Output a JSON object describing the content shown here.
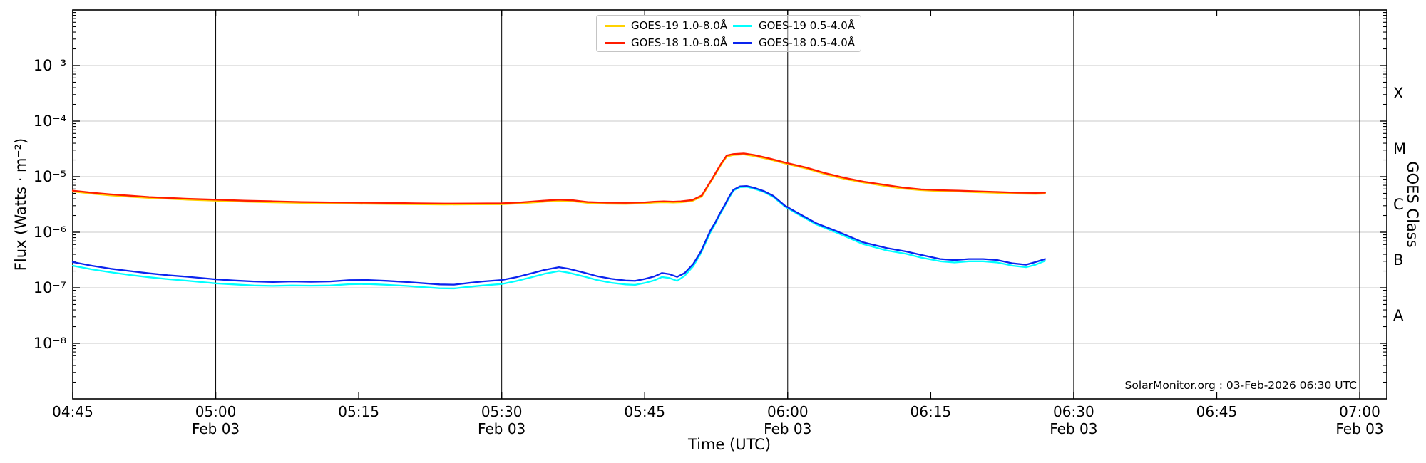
{
  "figure": {
    "xlabel": "Time (UTC)",
    "ylabel_left": "Flux (Watts · m⁻²)",
    "ylabel_right": "GOES Class",
    "attribution": "SolarMonitor.org : 03-Feb-2026 06:30 UTC"
  },
  "chart_data": {
    "type": "line",
    "title": "",
    "xlabel": "Time (UTC)",
    "ylabel": "Flux (Watts · m⁻²)",
    "ylabel_right": "GOES Class",
    "attribution": "SolarMonitor.org : 03-Feb-2026 06:30 UTC",
    "y_scale": "log",
    "ylim": [
      1e-09,
      0.01
    ],
    "x_axis": {
      "start_label": "04:45",
      "end_label": "07:00",
      "minutes_after_start_domain": [
        0,
        137.8
      ],
      "ticks": [
        {
          "min": 0,
          "label": "04:45"
        },
        {
          "min": 15,
          "label": "05:00",
          "date": "Feb 03"
        },
        {
          "min": 30,
          "label": "05:15"
        },
        {
          "min": 45,
          "label": "05:30",
          "date": "Feb 03"
        },
        {
          "min": 60,
          "label": "05:45"
        },
        {
          "min": 75,
          "label": "06:00",
          "date": "Feb 03"
        },
        {
          "min": 90,
          "label": "06:15"
        },
        {
          "min": 105,
          "label": "06:30",
          "date": "Feb 03"
        },
        {
          "min": 120,
          "label": "06:45"
        },
        {
          "min": 135,
          "label": "07:00",
          "date": "Feb 03"
        }
      ],
      "vertical_gridline_minutes": [
        15,
        45,
        75,
        105,
        135
      ]
    },
    "y_axis": {
      "tick_exponents": [
        -3,
        -4,
        -5,
        -6,
        -7,
        -8
      ],
      "tick_labels": [
        "10⁻³",
        "10⁻⁴",
        "10⁻⁵",
        "10⁻⁶",
        "10⁻⁷",
        "10⁻⁸"
      ],
      "gridline_exponents": [
        -3,
        -4,
        -5,
        -6,
        -7,
        -8
      ],
      "grid_color": "#c9c9c9"
    },
    "goes_classes": [
      {
        "label": "X",
        "center_exponent": -3.5
      },
      {
        "label": "M",
        "center_exponent": -4.5
      },
      {
        "label": "C",
        "center_exponent": -5.5
      },
      {
        "label": "B",
        "center_exponent": -6.5
      },
      {
        "label": "A",
        "center_exponent": -7.5
      }
    ],
    "legend_position": "top-center",
    "series": [
      {
        "name": "GOES-19 1.0-8.0Å",
        "color": "#ffd200",
        "points_min_flux": [
          [
            0,
            5.4e-06
          ],
          [
            2,
            4.95e-06
          ],
          [
            4,
            4.6e-06
          ],
          [
            6,
            4.35e-06
          ],
          [
            8,
            4.15e-06
          ],
          [
            10,
            4e-06
          ],
          [
            12,
            3.85e-06
          ],
          [
            15,
            3.7e-06
          ],
          [
            18,
            3.55e-06
          ],
          [
            21,
            3.45e-06
          ],
          [
            24,
            3.36e-06
          ],
          [
            27,
            3.31e-06
          ],
          [
            30,
            3.26e-06
          ],
          [
            33,
            3.23e-06
          ],
          [
            36,
            3.19e-06
          ],
          [
            39,
            3.15e-06
          ],
          [
            42,
            3.17e-06
          ],
          [
            45,
            3.19e-06
          ],
          [
            47,
            3.31e-06
          ],
          [
            49,
            3.5e-06
          ],
          [
            51,
            3.7e-06
          ],
          [
            52.5,
            3.6e-06
          ],
          [
            54,
            3.36e-06
          ],
          [
            56,
            3.26e-06
          ],
          [
            58,
            3.24e-06
          ],
          [
            60,
            3.31e-06
          ],
          [
            61,
            3.41e-06
          ],
          [
            62,
            3.46e-06
          ],
          [
            63,
            3.41e-06
          ],
          [
            63.8,
            3.46e-06
          ],
          [
            65,
            3.65e-06
          ],
          [
            66,
            4.4e-06
          ],
          [
            66.8,
            7.4e-06
          ],
          [
            67.2,
            9.6e-06
          ],
          [
            68,
            1.63e-05
          ],
          [
            68.6,
            2.3e-05
          ],
          [
            69.3,
            2.45e-05
          ],
          [
            70.4,
            2.52e-05
          ],
          [
            71.5,
            2.35e-05
          ],
          [
            73,
            2.06e-05
          ],
          [
            74.7,
            1.73e-05
          ],
          [
            77,
            1.39e-05
          ],
          [
            79,
            1.1e-05
          ],
          [
            81,
            9.1e-06
          ],
          [
            83,
            7.8e-06
          ],
          [
            85,
            6.9e-06
          ],
          [
            87,
            6.1e-06
          ],
          [
            89,
            5.7e-06
          ],
          [
            91,
            5.5e-06
          ],
          [
            93,
            5.4e-06
          ],
          [
            95,
            5.23e-06
          ],
          [
            97,
            5.1e-06
          ],
          [
            99,
            4.94e-06
          ],
          [
            101,
            4.9e-06
          ],
          [
            102,
            4.94e-06
          ]
        ]
      },
      {
        "name": "GOES-18 1.0-8.0Å",
        "color": "#ff1c00",
        "points_min_flux": [
          [
            0,
            5.6e-06
          ],
          [
            2,
            5.15e-06
          ],
          [
            4,
            4.8e-06
          ],
          [
            6,
            4.55e-06
          ],
          [
            8,
            4.3e-06
          ],
          [
            10,
            4.15e-06
          ],
          [
            12,
            4e-06
          ],
          [
            15,
            3.85e-06
          ],
          [
            18,
            3.7e-06
          ],
          [
            21,
            3.6e-06
          ],
          [
            24,
            3.5e-06
          ],
          [
            27,
            3.45e-06
          ],
          [
            30,
            3.4e-06
          ],
          [
            33,
            3.37e-06
          ],
          [
            36,
            3.32e-06
          ],
          [
            39,
            3.28e-06
          ],
          [
            42,
            3.3e-06
          ],
          [
            45,
            3.32e-06
          ],
          [
            47,
            3.45e-06
          ],
          [
            49,
            3.65e-06
          ],
          [
            51,
            3.85e-06
          ],
          [
            52.5,
            3.75e-06
          ],
          [
            54,
            3.5e-06
          ],
          [
            56,
            3.4e-06
          ],
          [
            58,
            3.38e-06
          ],
          [
            60,
            3.45e-06
          ],
          [
            61,
            3.55e-06
          ],
          [
            62,
            3.6e-06
          ],
          [
            63,
            3.55e-06
          ],
          [
            63.8,
            3.6e-06
          ],
          [
            65,
            3.8e-06
          ],
          [
            66,
            4.6e-06
          ],
          [
            66.8,
            7.7e-06
          ],
          [
            67.2,
            1e-05
          ],
          [
            68,
            1.7e-05
          ],
          [
            68.6,
            2.4e-05
          ],
          [
            69.3,
            2.55e-05
          ],
          [
            70.4,
            2.62e-05
          ],
          [
            71.5,
            2.45e-05
          ],
          [
            73,
            2.15e-05
          ],
          [
            74.7,
            1.8e-05
          ],
          [
            77,
            1.45e-05
          ],
          [
            79,
            1.15e-05
          ],
          [
            81,
            9.5e-06
          ],
          [
            83,
            8.1e-06
          ],
          [
            85,
            7.2e-06
          ],
          [
            87,
            6.4e-06
          ],
          [
            89,
            5.9e-06
          ],
          [
            91,
            5.7e-06
          ],
          [
            93,
            5.6e-06
          ],
          [
            95,
            5.45e-06
          ],
          [
            97,
            5.3e-06
          ],
          [
            99,
            5.15e-06
          ],
          [
            101,
            5.1e-06
          ],
          [
            102,
            5.15e-06
          ]
        ]
      },
      {
        "name": "GOES-19 0.5-4.0Å",
        "color": "#00ffff",
        "points_min_flux": [
          [
            0,
            2.5e-07
          ],
          [
            2,
            2.15e-07
          ],
          [
            4,
            1.9e-07
          ],
          [
            6,
            1.7e-07
          ],
          [
            8,
            1.55e-07
          ],
          [
            10,
            1.43e-07
          ],
          [
            12,
            1.34e-07
          ],
          [
            15,
            1.2e-07
          ],
          [
            17,
            1.15e-07
          ],
          [
            19,
            1.1e-07
          ],
          [
            21,
            1.08e-07
          ],
          [
            23,
            1.1e-07
          ],
          [
            25,
            1.09e-07
          ],
          [
            27,
            1.1e-07
          ],
          [
            29,
            1.16e-07
          ],
          [
            31,
            1.17e-07
          ],
          [
            33,
            1.13e-07
          ],
          [
            35,
            1.08e-07
          ],
          [
            37,
            1.02e-07
          ],
          [
            38.5,
            9.8e-08
          ],
          [
            40,
            9.7e-08
          ],
          [
            41.5,
            1.04e-07
          ],
          [
            43,
            1.1e-07
          ],
          [
            45,
            1.17e-07
          ],
          [
            46.5,
            1.32e-07
          ],
          [
            48,
            1.53e-07
          ],
          [
            49.5,
            1.79e-07
          ],
          [
            51,
            2e-07
          ],
          [
            52,
            1.87e-07
          ],
          [
            53.5,
            1.62e-07
          ],
          [
            55,
            1.38e-07
          ],
          [
            56.5,
            1.23e-07
          ],
          [
            58,
            1.15e-07
          ],
          [
            59,
            1.13e-07
          ],
          [
            60,
            1.22e-07
          ],
          [
            61,
            1.36e-07
          ],
          [
            61.8,
            1.56e-07
          ],
          [
            62.6,
            1.5e-07
          ],
          [
            63.4,
            1.33e-07
          ],
          [
            64.2,
            1.65e-07
          ],
          [
            65.1,
            2.45e-07
          ],
          [
            65.9,
            4.2e-07
          ],
          [
            66.4,
            6.5e-07
          ],
          [
            66.9,
            1e-06
          ],
          [
            67.4,
            1.42e-06
          ],
          [
            67.9,
            2.1e-06
          ],
          [
            68.4,
            2.95e-06
          ],
          [
            68.9,
            4.3e-06
          ],
          [
            69.3,
            5.6e-06
          ],
          [
            70,
            6.45e-06
          ],
          [
            70.7,
            6.55e-06
          ],
          [
            71.5,
            6.05e-06
          ],
          [
            72.5,
            5.3e-06
          ],
          [
            73.5,
            4.3e-06
          ],
          [
            74.7,
            2.9e-06
          ],
          [
            76,
            2.15e-06
          ],
          [
            78,
            1.38e-06
          ],
          [
            80.4,
            9.4e-07
          ],
          [
            82.9,
            6.1e-07
          ],
          [
            85.4,
            4.7e-07
          ],
          [
            87.4,
            4.1e-07
          ],
          [
            89,
            3.5e-07
          ],
          [
            91,
            3e-07
          ],
          [
            92.5,
            2.85e-07
          ],
          [
            94,
            3e-07
          ],
          [
            95.5,
            3e-07
          ],
          [
            97,
            2.85e-07
          ],
          [
            98.6,
            2.5e-07
          ],
          [
            100,
            2.35e-07
          ],
          [
            101,
            2.6e-07
          ],
          [
            102,
            3.05e-07
          ]
        ]
      },
      {
        "name": "GOES-18 0.5-4.0Å",
        "color": "#0a24ee",
        "points_min_flux": [
          [
            0,
            2.9e-07
          ],
          [
            2,
            2.5e-07
          ],
          [
            4,
            2.2e-07
          ],
          [
            6,
            2e-07
          ],
          [
            8,
            1.82e-07
          ],
          [
            10,
            1.68e-07
          ],
          [
            12,
            1.58e-07
          ],
          [
            15,
            1.42e-07
          ],
          [
            17,
            1.35e-07
          ],
          [
            19,
            1.3e-07
          ],
          [
            21,
            1.27e-07
          ],
          [
            23,
            1.3e-07
          ],
          [
            25,
            1.28e-07
          ],
          [
            27,
            1.3e-07
          ],
          [
            29,
            1.37e-07
          ],
          [
            31,
            1.38e-07
          ],
          [
            33,
            1.33e-07
          ],
          [
            35,
            1.27e-07
          ],
          [
            37,
            1.2e-07
          ],
          [
            38.5,
            1.15e-07
          ],
          [
            40,
            1.14e-07
          ],
          [
            41.5,
            1.22e-07
          ],
          [
            43,
            1.3e-07
          ],
          [
            45,
            1.38e-07
          ],
          [
            46.5,
            1.55e-07
          ],
          [
            48,
            1.8e-07
          ],
          [
            49.5,
            2.1e-07
          ],
          [
            51,
            2.35e-07
          ],
          [
            52,
            2.2e-07
          ],
          [
            53.5,
            1.9e-07
          ],
          [
            55,
            1.62e-07
          ],
          [
            56.5,
            1.45e-07
          ],
          [
            58,
            1.35e-07
          ],
          [
            59,
            1.33e-07
          ],
          [
            60,
            1.44e-07
          ],
          [
            61,
            1.6e-07
          ],
          [
            61.8,
            1.84e-07
          ],
          [
            62.6,
            1.76e-07
          ],
          [
            63.4,
            1.57e-07
          ],
          [
            64.2,
            1.85e-07
          ],
          [
            65.1,
            2.7e-07
          ],
          [
            65.9,
            4.5e-07
          ],
          [
            66.4,
            7e-07
          ],
          [
            66.9,
            1.08e-06
          ],
          [
            67.4,
            1.5e-06
          ],
          [
            67.9,
            2.2e-06
          ],
          [
            68.4,
            3.1e-06
          ],
          [
            68.9,
            4.5e-06
          ],
          [
            69.3,
            5.8e-06
          ],
          [
            70,
            6.7e-06
          ],
          [
            70.7,
            6.8e-06
          ],
          [
            71.5,
            6.3e-06
          ],
          [
            72.5,
            5.5e-06
          ],
          [
            73.5,
            4.5e-06
          ],
          [
            74.7,
            3e-06
          ],
          [
            76,
            2.25e-06
          ],
          [
            78,
            1.45e-06
          ],
          [
            80.4,
            1e-06
          ],
          [
            82.9,
            6.6e-07
          ],
          [
            85.4,
            5.2e-07
          ],
          [
            87.4,
            4.5e-07
          ],
          [
            89,
            3.9e-07
          ],
          [
            91,
            3.3e-07
          ],
          [
            92.5,
            3.15e-07
          ],
          [
            94,
            3.3e-07
          ],
          [
            95.5,
            3.3e-07
          ],
          [
            97,
            3.15e-07
          ],
          [
            98.6,
            2.75e-07
          ],
          [
            100,
            2.6e-07
          ],
          [
            101,
            2.9e-07
          ],
          [
            102,
            3.3e-07
          ]
        ]
      }
    ]
  },
  "legend": {
    "items": [
      {
        "label": "GOES-19 1.0-8.0Å",
        "color": "#ffd200"
      },
      {
        "label": "GOES-18 1.0-8.0Å",
        "color": "#ff1c00"
      },
      {
        "label": "GOES-19 0.5-4.0Å",
        "color": "#00ffff"
      },
      {
        "label": "GOES-18 0.5-4.0Å",
        "color": "#0a24ee"
      }
    ]
  }
}
